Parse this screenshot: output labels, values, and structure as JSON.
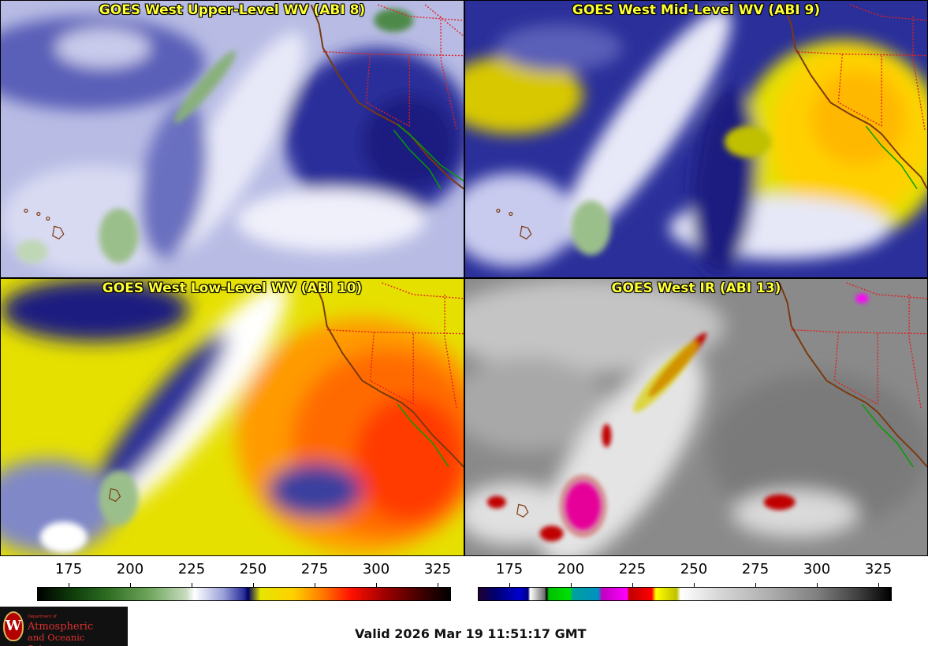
{
  "panels": [
    {
      "title": "GOES West Upper-Level WV (ABI 8)"
    },
    {
      "title": "GOES West Mid-Level WV (ABI 9)"
    },
    {
      "title": "GOES West Low-Level WV (ABI 10)"
    },
    {
      "title": "GOES West IR (ABI 13)"
    }
  ],
  "scales": {
    "wv": {
      "ticks": [
        "175",
        "200",
        "225",
        "250",
        "275",
        "300",
        "325"
      ]
    },
    "ir": {
      "ticks": [
        "175",
        "200",
        "225",
        "250",
        "275",
        "300",
        "325"
      ]
    }
  },
  "logo": {
    "crest": "W",
    "dept": "Department of",
    "line1": "Atmospheric",
    "line2": "and Oceanic Sciences"
  },
  "valid_time": "Valid 2026 Mar 19 11:51:17 GMT",
  "colors": {
    "title_text": "#ffff33",
    "state_borders": "#e02020",
    "coastline": "#7a3a10",
    "mexico_coast": "#00a000"
  }
}
